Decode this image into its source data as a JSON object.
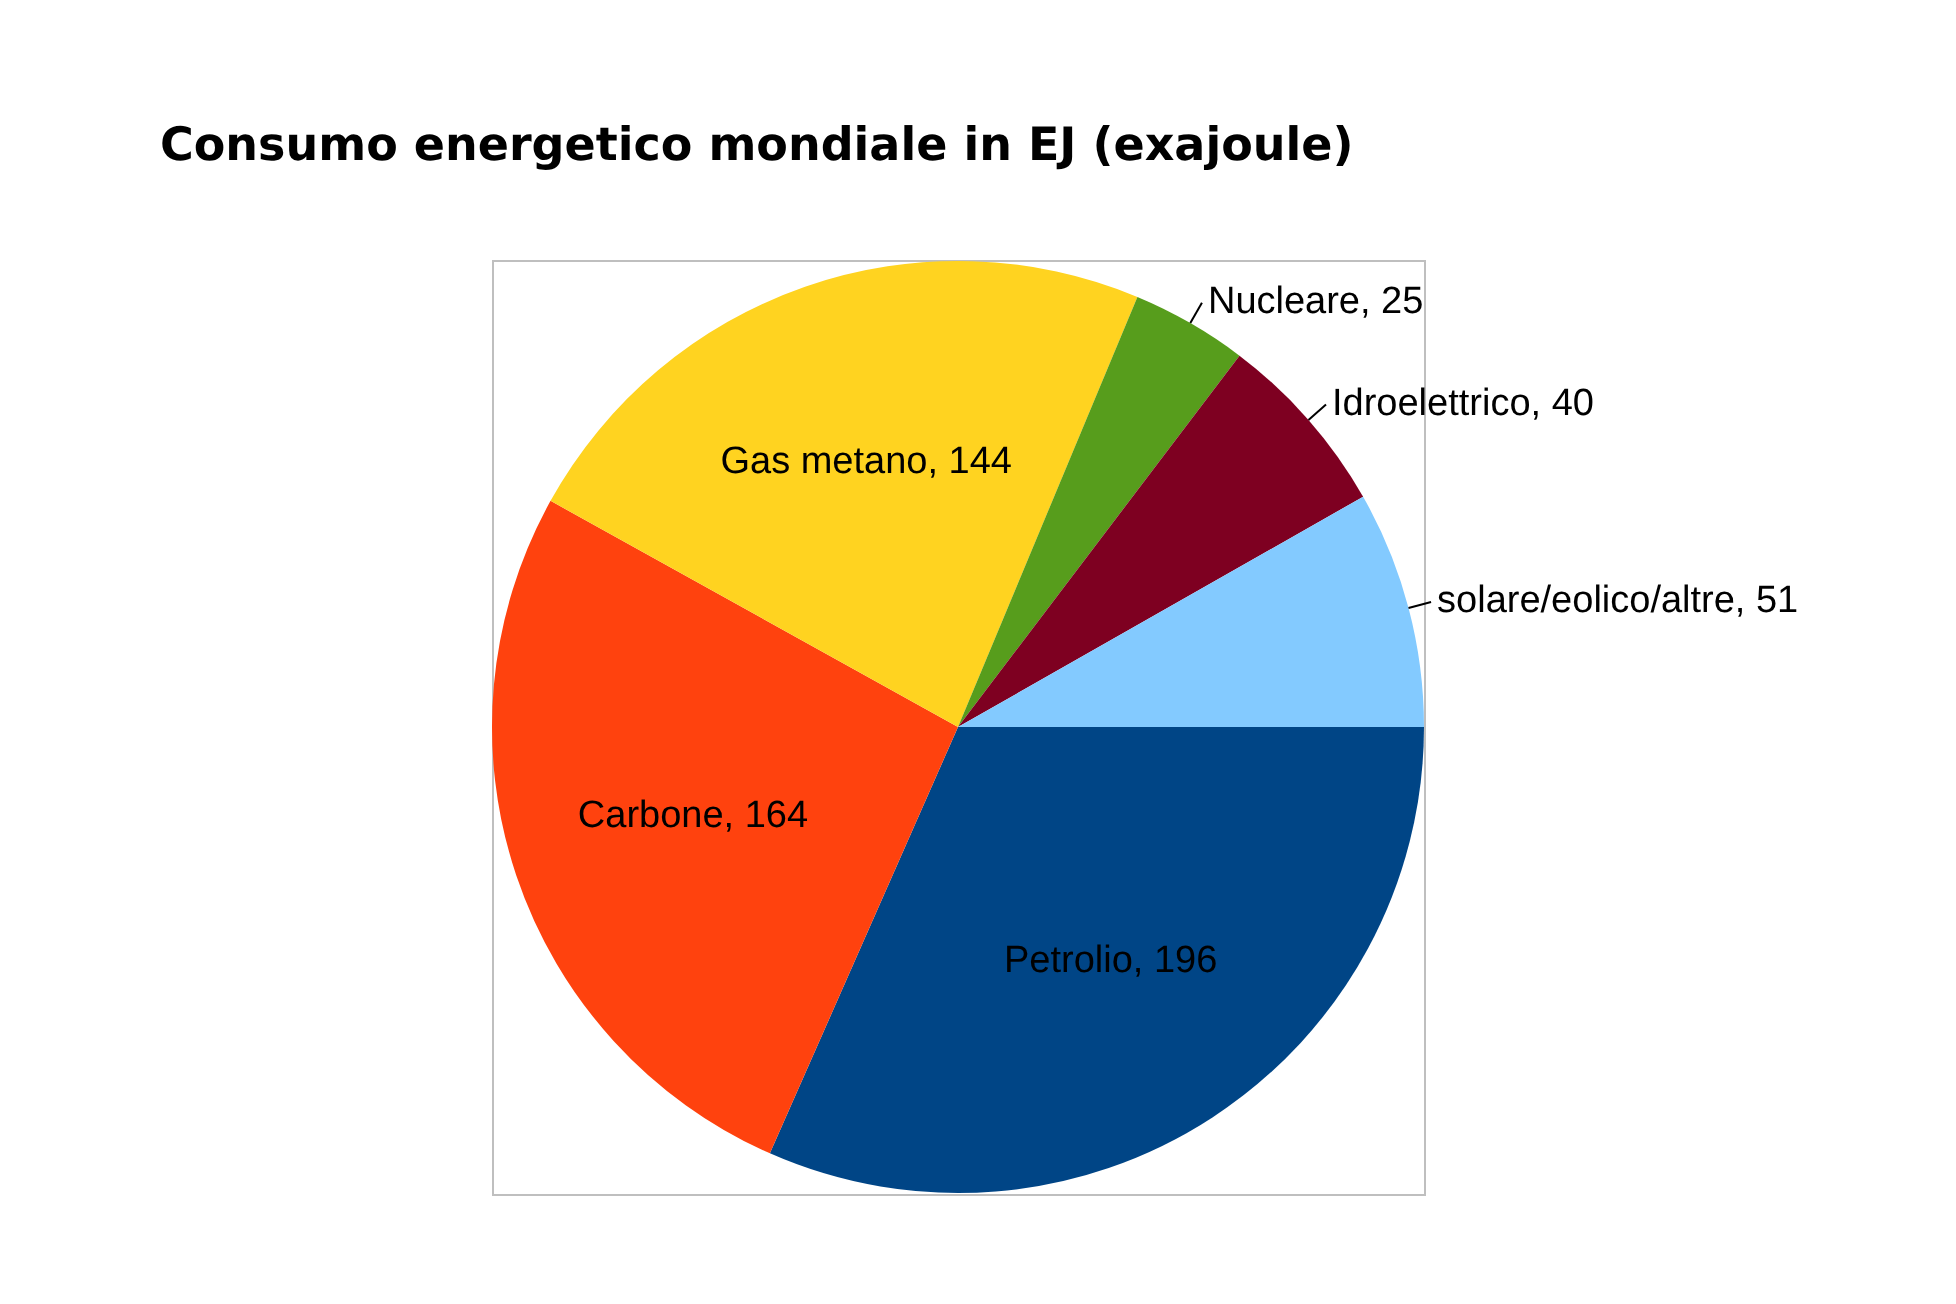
{
  "chart_data": {
    "type": "pie",
    "title": "Consumo energetico mondiale in EJ (exajoule)",
    "categories": [
      "Petrolio",
      "Carbone",
      "Gas metano",
      "Nucleare",
      "Idroelettrico",
      "solare/eolico/altre"
    ],
    "values": [
      196,
      164,
      144,
      25,
      40,
      51
    ],
    "colors": [
      "#004586",
      "#ff420e",
      "#ffd320",
      "#579d1c",
      "#7e0021",
      "#83caff"
    ],
    "value_labels": [
      ", 196",
      ", 164",
      ", 144",
      ", 25",
      ", 40",
      ", 51"
    ],
    "legend": false
  }
}
